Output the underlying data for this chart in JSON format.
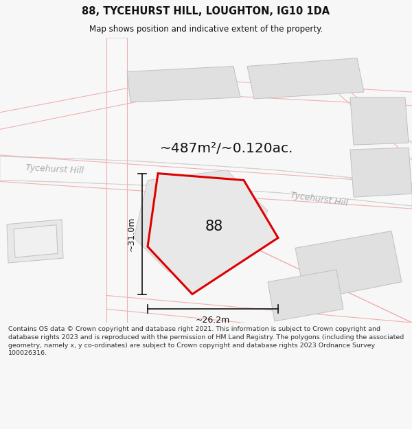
{
  "title": "88, TYCEHURST HILL, LOUGHTON, IG10 1DA",
  "subtitle": "Map shows position and indicative extent of the property.",
  "footer": "Contains OS data © Crown copyright and database right 2021. This information is subject to Crown copyright and database rights 2023 and is reproduced with the permission of HM Land Registry. The polygons (including the associated geometry, namely x, y co-ordinates) are subject to Crown copyright and database rights 2023 Ordnance Survey 100026316.",
  "area_label": "~487m²/~0.120ac.",
  "plot_number": "88",
  "dim_vertical": "~31.0m",
  "dim_horizontal": "~26.2m",
  "road_label_left": "Tycehurst Hill",
  "road_label_right": "Tycehurst Hill",
  "bg_color": "#f7f7f7",
  "map_bg": "#ffffff",
  "block_color": "#e0e0e0",
  "block_edge_color": "#c0c0c0",
  "road_line_color": "#f0b0b0",
  "road_band_color": "#f8f8f8",
  "road_edge_color": "#d0d0d0",
  "property_fill": "#e8e8e8",
  "property_edge_color": "#dd0000",
  "title_color": "#111111",
  "footer_color": "#333333",
  "dim_color": "#111111",
  "road_label_color": "#aaaaaa",
  "area_label_color": "#111111"
}
